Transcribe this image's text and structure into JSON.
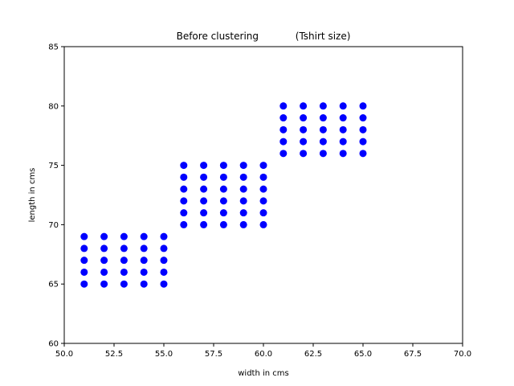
{
  "chart_data": {
    "type": "scatter",
    "title": "Before clustering            (Tshirt size)",
    "xlabel": "width in cms",
    "ylabel": "length in cms",
    "xlim": [
      50,
      70
    ],
    "ylim": [
      60,
      85
    ],
    "xticks": [
      "50.0",
      "52.5",
      "55.0",
      "57.5",
      "60.0",
      "62.5",
      "65.0",
      "67.5",
      "70.0"
    ],
    "yticks": [
      "60",
      "65",
      "70",
      "75",
      "80",
      "85"
    ],
    "grid": false,
    "marker_color": "#0000ff",
    "points": [
      [
        51,
        65
      ],
      [
        51,
        66
      ],
      [
        51,
        67
      ],
      [
        51,
        68
      ],
      [
        51,
        69
      ],
      [
        52,
        65
      ],
      [
        52,
        66
      ],
      [
        52,
        67
      ],
      [
        52,
        68
      ],
      [
        52,
        69
      ],
      [
        53,
        65
      ],
      [
        53,
        66
      ],
      [
        53,
        67
      ],
      [
        53,
        68
      ],
      [
        53,
        69
      ],
      [
        54,
        65
      ],
      [
        54,
        66
      ],
      [
        54,
        67
      ],
      [
        54,
        68
      ],
      [
        54,
        69
      ],
      [
        55,
        65
      ],
      [
        55,
        66
      ],
      [
        55,
        67
      ],
      [
        55,
        68
      ],
      [
        55,
        69
      ],
      [
        56,
        70
      ],
      [
        56,
        71
      ],
      [
        56,
        72
      ],
      [
        56,
        73
      ],
      [
        56,
        74
      ],
      [
        56,
        75
      ],
      [
        57,
        70
      ],
      [
        57,
        71
      ],
      [
        57,
        72
      ],
      [
        57,
        73
      ],
      [
        57,
        74
      ],
      [
        57,
        75
      ],
      [
        58,
        70
      ],
      [
        58,
        71
      ],
      [
        58,
        72
      ],
      [
        58,
        73
      ],
      [
        58,
        74
      ],
      [
        58,
        75
      ],
      [
        59,
        70
      ],
      [
        59,
        71
      ],
      [
        59,
        72
      ],
      [
        59,
        73
      ],
      [
        59,
        74
      ],
      [
        59,
        75
      ],
      [
        60,
        70
      ],
      [
        60,
        71
      ],
      [
        60,
        72
      ],
      [
        60,
        73
      ],
      [
        60,
        74
      ],
      [
        60,
        75
      ],
      [
        61,
        76
      ],
      [
        61,
        77
      ],
      [
        61,
        78
      ],
      [
        61,
        79
      ],
      [
        61,
        80
      ],
      [
        62,
        76
      ],
      [
        62,
        77
      ],
      [
        62,
        78
      ],
      [
        62,
        79
      ],
      [
        62,
        80
      ],
      [
        63,
        76
      ],
      [
        63,
        77
      ],
      [
        63,
        78
      ],
      [
        63,
        79
      ],
      [
        63,
        80
      ],
      [
        64,
        76
      ],
      [
        64,
        77
      ],
      [
        64,
        78
      ],
      [
        64,
        79
      ],
      [
        64,
        80
      ],
      [
        65,
        76
      ],
      [
        65,
        77
      ],
      [
        65,
        78
      ],
      [
        65,
        79
      ],
      [
        65,
        80
      ]
    ]
  }
}
